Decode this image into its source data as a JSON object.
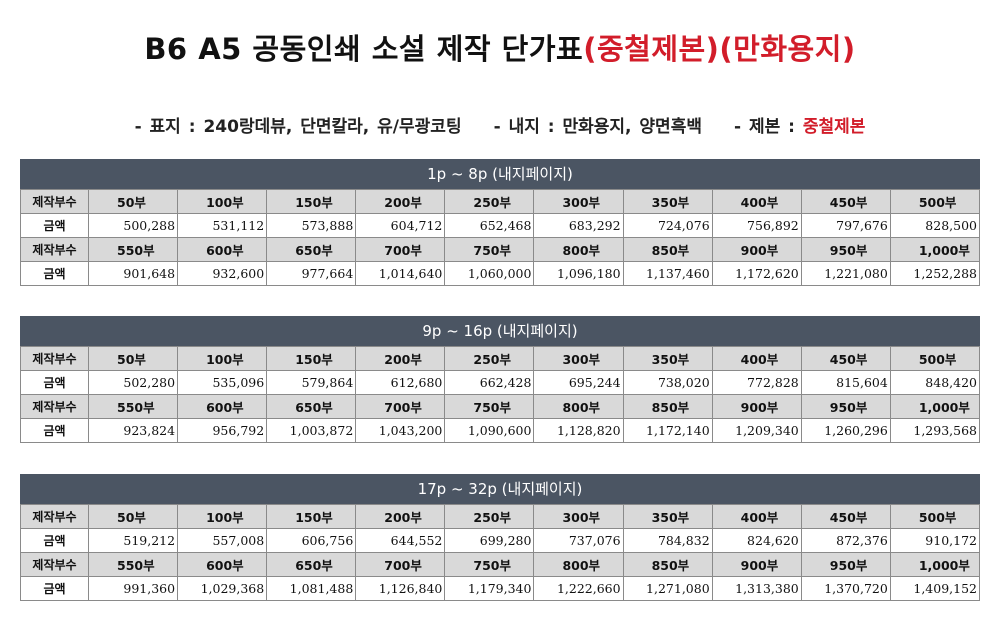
{
  "title": {
    "main": "B6 A5 공동인쇄 소설 제작 단가표",
    "highlight": "(중철제본)(만화용지)"
  },
  "specs": {
    "cover": "- 표지 : 240랑데뷰, 단면칼라, 유/무광코팅",
    "inner": "- 내지 : 만화용지, 양면흑백",
    "binding_label": "- 제본 : ",
    "binding_value": "중철제본"
  },
  "labels": {
    "qty": "제작부수",
    "price": "금액"
  },
  "sections": [
    {
      "header": "1p ~ 8p (내지페이지)",
      "rows": [
        {
          "qty": [
            "50부",
            "100부",
            "150부",
            "200부",
            "250부",
            "300부",
            "350부",
            "400부",
            "450부",
            "500부"
          ],
          "price": [
            "500,288",
            "531,112",
            "573,888",
            "604,712",
            "652,468",
            "683,292",
            "724,076",
            "756,892",
            "797,676",
            "828,500"
          ]
        },
        {
          "qty": [
            "550부",
            "600부",
            "650부",
            "700부",
            "750부",
            "800부",
            "850부",
            "900부",
            "950부",
            "1,000부"
          ],
          "price": [
            "901,648",
            "932,600",
            "977,664",
            "1,014,640",
            "1,060,000",
            "1,096,180",
            "1,137,460",
            "1,172,620",
            "1,221,080",
            "1,252,288"
          ]
        }
      ]
    },
    {
      "header": "9p ~ 16p (내지페이지)",
      "rows": [
        {
          "qty": [
            "50부",
            "100부",
            "150부",
            "200부",
            "250부",
            "300부",
            "350부",
            "400부",
            "450부",
            "500부"
          ],
          "price": [
            "502,280",
            "535,096",
            "579,864",
            "612,680",
            "662,428",
            "695,244",
            "738,020",
            "772,828",
            "815,604",
            "848,420"
          ]
        },
        {
          "qty": [
            "550부",
            "600부",
            "650부",
            "700부",
            "750부",
            "800부",
            "850부",
            "900부",
            "950부",
            "1,000부"
          ],
          "price": [
            "923,824",
            "956,792",
            "1,003,872",
            "1,043,200",
            "1,090,600",
            "1,128,820",
            "1,172,140",
            "1,209,340",
            "1,260,296",
            "1,293,568"
          ]
        }
      ]
    },
    {
      "header": "17p ~ 32p (내지페이지)",
      "rows": [
        {
          "qty": [
            "50부",
            "100부",
            "150부",
            "200부",
            "250부",
            "300부",
            "350부",
            "400부",
            "450부",
            "500부"
          ],
          "price": [
            "519,212",
            "557,008",
            "606,756",
            "644,552",
            "699,280",
            "737,076",
            "784,832",
            "824,620",
            "872,376",
            "910,172"
          ]
        },
        {
          "qty": [
            "550부",
            "600부",
            "650부",
            "700부",
            "750부",
            "800부",
            "850부",
            "900부",
            "950부",
            "1,000부"
          ],
          "price": [
            "991,360",
            "1,029,368",
            "1,081,488",
            "1,126,840",
            "1,179,340",
            "1,222,660",
            "1,271,080",
            "1,313,380",
            "1,370,720",
            "1,409,152"
          ]
        }
      ]
    }
  ]
}
